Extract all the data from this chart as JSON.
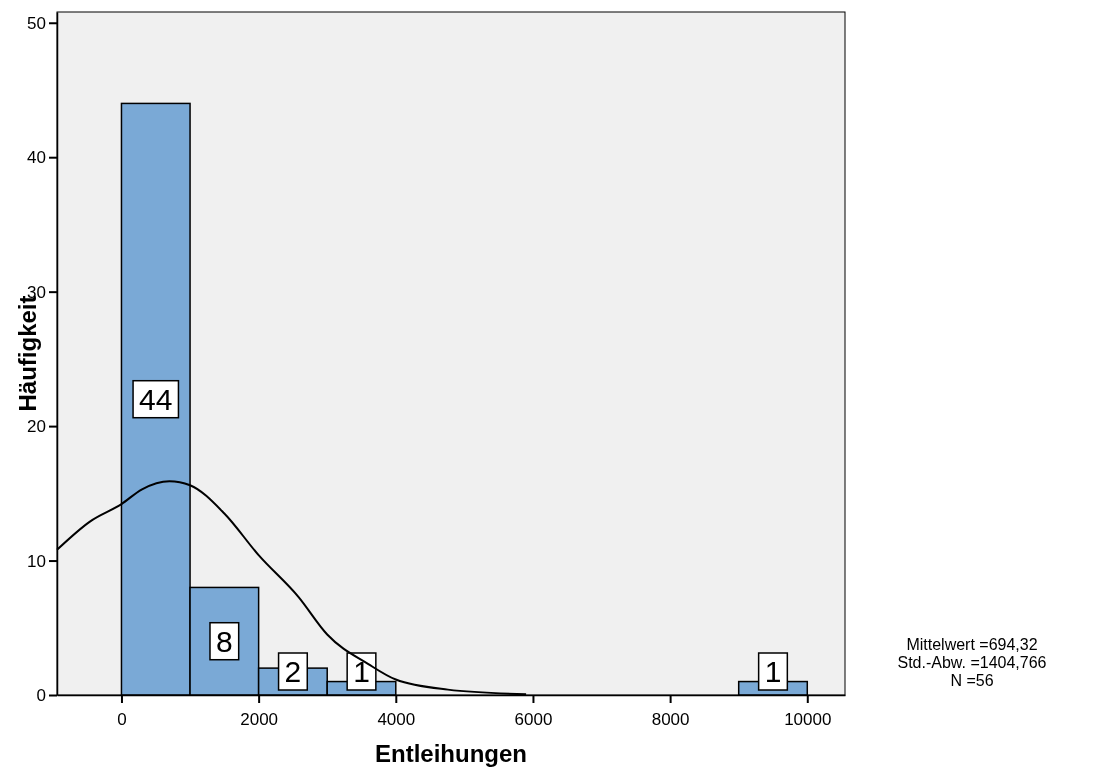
{
  "chart_data": {
    "type": "histogram",
    "xlabel": "Entleihungen",
    "ylabel": "Häufigkeit",
    "bins": [
      0,
      1000,
      2000,
      3000,
      4000,
      5000,
      6000,
      7000,
      8000,
      9000,
      10000
    ],
    "values": [
      44,
      8,
      2,
      1,
      0,
      0,
      0,
      0,
      0,
      1
    ],
    "value_labels": [
      "44",
      "8",
      "2",
      "1",
      null,
      null,
      null,
      null,
      null,
      "1"
    ],
    "color": "#7aa9d6",
    "series": [
      {
        "type": "line",
        "color": "#000000",
        "x": [
          -940,
          -460,
          0,
          300,
          700,
          1000,
          1500,
          2000,
          2580,
          3000,
          3600,
          4000,
          4760,
          5900
        ],
        "values": [
          10.8,
          12.9,
          14.2,
          15.3,
          15.9,
          15.6,
          13.5,
          10.4,
          7.3,
          4.5,
          2.3,
          1.15,
          0.4,
          0.05
        ]
      }
    ],
    "xlim": [
      -940,
      10550
    ],
    "ylim": [
      0,
      50.8
    ],
    "xticks": [
      0,
      2000,
      4000,
      6000,
      8000,
      10000
    ],
    "yticks": [
      0,
      10,
      20,
      30,
      40,
      50
    ],
    "grid": false,
    "annotations": [
      "Mittelwert =694,32",
      "Std.-Abw. =1404,766",
      "N =56"
    ]
  }
}
